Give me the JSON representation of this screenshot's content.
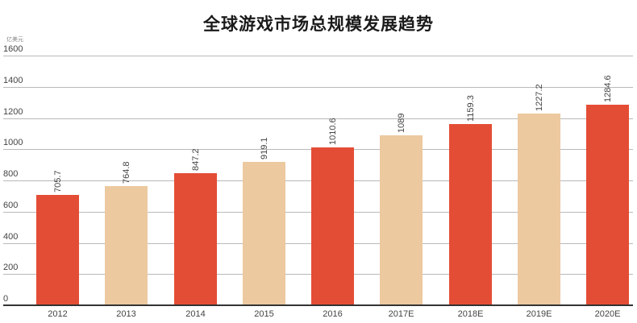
{
  "chart_data": {
    "type": "bar",
    "title": "全球游戏市场总规模发展趋势",
    "ylabel": "亿美元",
    "xlabel": "",
    "categories": [
      "2012",
      "2013",
      "2014",
      "2015",
      "2016",
      "2017E",
      "2018E",
      "2019E",
      "2020E"
    ],
    "values": [
      705.7,
      764.8,
      847.2,
      919.1,
      1010.6,
      1089,
      1159.3,
      1227.2,
      1284.6
    ],
    "value_labels": [
      "705.7",
      "764.8",
      "847.2",
      "919.1",
      "1010.6",
      "1089",
      "1159.3",
      "1227.2",
      "1284.6"
    ],
    "ylim": [
      0,
      1600
    ],
    "yticks": [
      0,
      200,
      400,
      600,
      800,
      1000,
      1200,
      1400,
      1600
    ],
    "grid": true,
    "legend": null,
    "bar_colors": [
      "#E44D35",
      "#EDC9A0",
      "#E44D35",
      "#EDC9A0",
      "#E44D35",
      "#EDC9A0",
      "#E44D35",
      "#EDC9A0",
      "#E44D35"
    ]
  },
  "colors": {
    "primary_bar": "#E44D35",
    "secondary_bar": "#EDC9A0",
    "gridline": "#b9b9b9",
    "axis": "#333333"
  }
}
